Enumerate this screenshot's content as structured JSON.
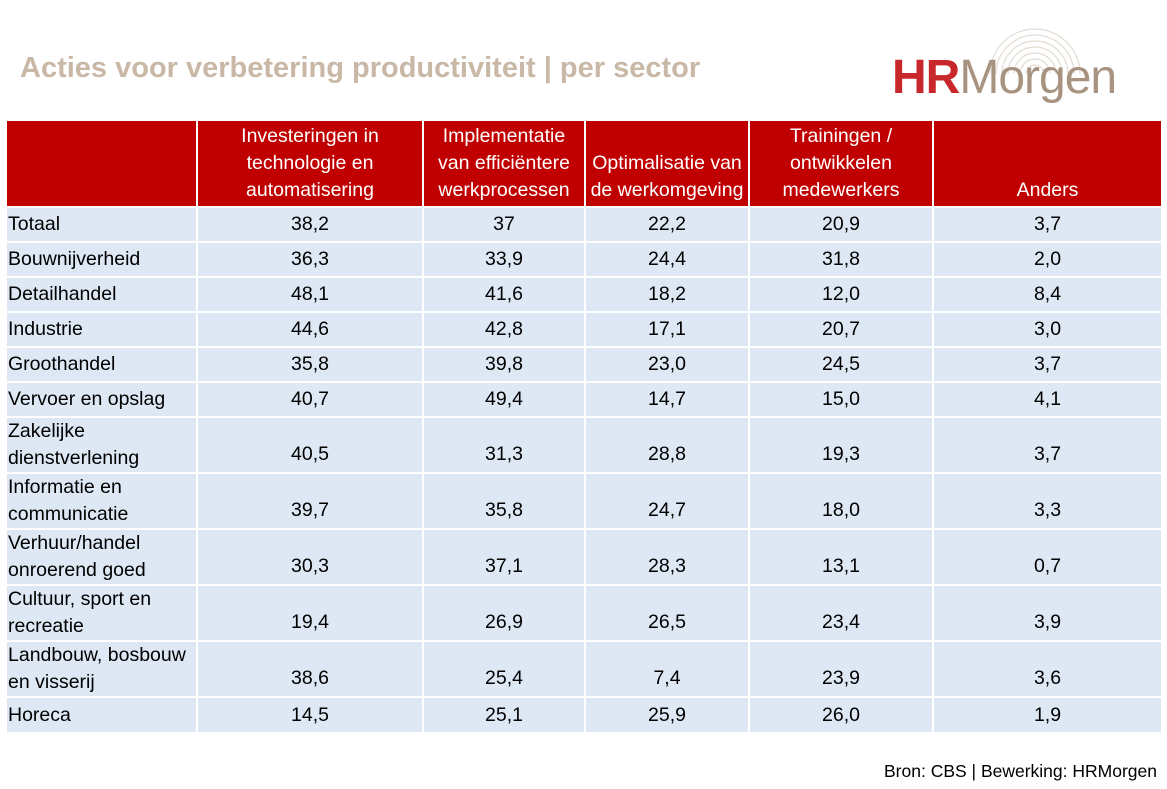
{
  "title": "Acties voor verbetering productiviteit | per sector",
  "logo": {
    "part1": "HR",
    "part2": "Morgen"
  },
  "source": "Bron: CBS | Bewerking: HRMorgen",
  "colors": {
    "header_bg": "#c00000",
    "row_bg": "#dde8f4",
    "title": "#c9b8a6",
    "logo_red": "#c8272b",
    "logo_taupe": "#a89380"
  },
  "chart_data": {
    "type": "table",
    "title": "Acties voor verbetering productiviteit | per sector",
    "columns": [
      "",
      "Investeringen in technologie en automatisering",
      "Implementatie van efficiëntere werkprocessen",
      "Optimalisatie van de werkomgeving",
      "Trainingen / ontwikkelen medewerkers",
      "Anders"
    ],
    "rows": [
      {
        "label": "Totaal",
        "values": [
          "38,2",
          "37",
          "22,2",
          "20,9",
          "3,7"
        ]
      },
      {
        "label": "Bouwnijverheid",
        "values": [
          "36,3",
          "33,9",
          "24,4",
          "31,8",
          "2,0"
        ]
      },
      {
        "label": "Detailhandel",
        "values": [
          "48,1",
          "41,6",
          "18,2",
          "12,0",
          "8,4"
        ]
      },
      {
        "label": "Industrie",
        "values": [
          "44,6",
          "42,8",
          "17,1",
          "20,7",
          "3,0"
        ]
      },
      {
        "label": "Groothandel",
        "values": [
          "35,8",
          "39,8",
          "23,0",
          "24,5",
          "3,7"
        ]
      },
      {
        "label": "Vervoer en opslag",
        "values": [
          "40,7",
          "49,4",
          "14,7",
          "15,0",
          "4,1"
        ]
      },
      {
        "label": "Zakelijke dienstverlening",
        "values": [
          "40,5",
          "31,3",
          "28,8",
          "19,3",
          "3,7"
        ]
      },
      {
        "label": "Informatie en communicatie",
        "values": [
          "39,7",
          "35,8",
          "24,7",
          "18,0",
          "3,3"
        ]
      },
      {
        "label": "Verhuur/handel onroerend goed",
        "values": [
          "30,3",
          "37,1",
          "28,3",
          "13,1",
          "0,7"
        ]
      },
      {
        "label": "Cultuur, sport en recreatie",
        "values": [
          "19,4",
          "26,9",
          "26,5",
          "23,4",
          "3,9"
        ]
      },
      {
        "label": "Landbouw, bosbouw en visserij",
        "values": [
          "38,6",
          "25,4",
          "7,4",
          "23,9",
          "3,6"
        ]
      },
      {
        "label": "Horeca",
        "values": [
          "14,5",
          "25,1",
          "25,9",
          "26,0",
          "1,9"
        ]
      }
    ]
  }
}
